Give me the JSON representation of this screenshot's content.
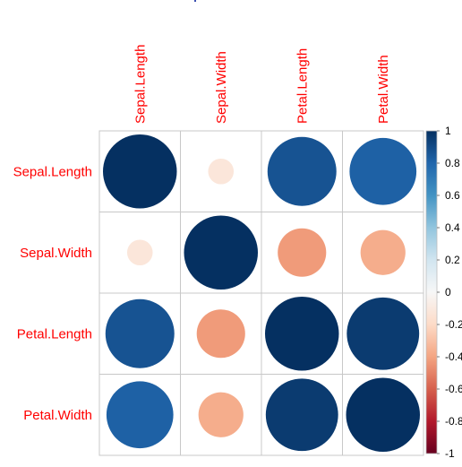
{
  "chart_data": {
    "type": "heatmap",
    "variables": [
      "Sepal.Length",
      "Sepal.Width",
      "Petal.Length",
      "Petal.Width"
    ],
    "matrix": [
      [
        1.0,
        -0.12,
        0.87,
        0.82
      ],
      [
        -0.12,
        1.0,
        -0.43,
        -0.37
      ],
      [
        0.87,
        -0.43,
        1.0,
        0.96
      ],
      [
        0.82,
        -0.37,
        0.96,
        1.0
      ]
    ],
    "title": "",
    "label_color": "#ff0000",
    "colorbar": {
      "range": [
        -1,
        1
      ],
      "ticks": [
        "1",
        "0.8",
        "0.6",
        "0.4",
        "0.2",
        "0",
        "-0.2",
        "-0.4",
        "-0.6",
        "-0.8",
        "-1"
      ],
      "low_color": "#67001f",
      "mid_color": "#f7f7f7",
      "high_color": "#053061"
    },
    "grid": true
  }
}
